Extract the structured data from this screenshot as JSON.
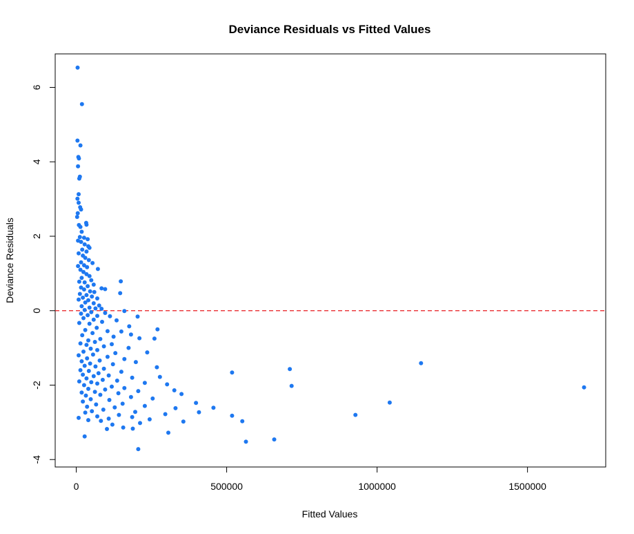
{
  "chart_data": {
    "type": "scatter",
    "title": "Deviance Residuals vs Fitted Values",
    "xlabel": "Fitted Values",
    "ylabel": "Deviance Residuals",
    "xlim": [
      -70000,
      1760000
    ],
    "ylim": [
      -4.2,
      6.9
    ],
    "x_ticks": [
      0,
      500000,
      1000000,
      1500000
    ],
    "x_tick_labels": [
      "0",
      "500000",
      "1000000",
      "1500000"
    ],
    "y_ticks": [
      -4,
      -2,
      0,
      2,
      4,
      6
    ],
    "y_tick_labels": [
      "-4",
      "-2",
      "0",
      "2",
      "4",
      "6"
    ],
    "grid": false,
    "point_color": "#1E78F0",
    "reference_line": {
      "y": 0,
      "color": "#E8191C",
      "style": "dashed"
    },
    "series": [
      {
        "points": [
          [
            4500,
            6.53
          ],
          [
            19000,
            5.55
          ],
          [
            4000,
            4.57
          ],
          [
            14000,
            4.44
          ],
          [
            7000,
            4.13
          ],
          [
            9000,
            4.09
          ],
          [
            6000,
            3.88
          ],
          [
            12000,
            3.6
          ],
          [
            10000,
            3.55
          ],
          [
            8000,
            3.13
          ],
          [
            4000,
            3.01
          ],
          [
            8000,
            2.9
          ],
          [
            13000,
            2.78
          ],
          [
            16000,
            2.72
          ],
          [
            5000,
            2.62
          ],
          [
            3000,
            2.52
          ],
          [
            33000,
            2.36
          ],
          [
            34000,
            2.31
          ],
          [
            9000,
            2.3
          ],
          [
            14000,
            2.25
          ],
          [
            18000,
            2.12
          ],
          [
            12000,
            1.98
          ],
          [
            26000,
            1.96
          ],
          [
            38000,
            1.92
          ],
          [
            6000,
            1.88
          ],
          [
            16000,
            1.85
          ],
          [
            28000,
            1.78
          ],
          [
            40000,
            1.73
          ],
          [
            44000,
            1.69
          ],
          [
            20000,
            1.64
          ],
          [
            34000,
            1.59
          ],
          [
            8000,
            1.54
          ],
          [
            22000,
            1.48
          ],
          [
            30000,
            1.42
          ],
          [
            42000,
            1.36
          ],
          [
            16000,
            1.3
          ],
          [
            54000,
            1.28
          ],
          [
            26000,
            1.22
          ],
          [
            6000,
            1.2
          ],
          [
            36000,
            1.17
          ],
          [
            72000,
            1.12
          ],
          [
            14000,
            1.1
          ],
          [
            24000,
            1.04
          ],
          [
            34000,
            0.98
          ],
          [
            44000,
            0.93
          ],
          [
            18000,
            0.88
          ],
          [
            50000,
            0.82
          ],
          [
            10000,
            0.78
          ],
          [
            28000,
            0.76
          ],
          [
            148000,
            0.79
          ],
          [
            58000,
            0.7
          ],
          [
            38000,
            0.66
          ],
          [
            16000,
            0.62
          ],
          [
            84000,
            0.6
          ],
          [
            96000,
            0.58
          ],
          [
            26000,
            0.57
          ],
          [
            46000,
            0.52
          ],
          [
            60000,
            0.5
          ],
          [
            146000,
            0.47
          ],
          [
            12000,
            0.45
          ],
          [
            34000,
            0.42
          ],
          [
            52000,
            0.38
          ],
          [
            22000,
            0.35
          ],
          [
            70000,
            0.33
          ],
          [
            8000,
            0.3
          ],
          [
            40000,
            0.28
          ],
          [
            30000,
            0.22
          ],
          [
            58000,
            0.2
          ],
          [
            76000,
            0.14
          ],
          [
            18000,
            0.12
          ],
          [
            44000,
            0.08
          ],
          [
            64000,
            0.06
          ],
          [
            84000,
            0.05
          ],
          [
            28000,
            0.02
          ],
          [
            160000,
            -0.01
          ],
          [
            50000,
            -0.04
          ],
          [
            96000,
            -0.06
          ],
          [
            16000,
            -0.08
          ],
          [
            38000,
            -0.12
          ],
          [
            70000,
            -0.14
          ],
          [
            112000,
            -0.15
          ],
          [
            204000,
            -0.16
          ],
          [
            24000,
            -0.2
          ],
          [
            58000,
            -0.24
          ],
          [
            134000,
            -0.26
          ],
          [
            86000,
            -0.3
          ],
          [
            10000,
            -0.33
          ],
          [
            44000,
            -0.35
          ],
          [
            176000,
            -0.42
          ],
          [
            68000,
            -0.46
          ],
          [
            270000,
            -0.5
          ],
          [
            30000,
            -0.52
          ],
          [
            104000,
            -0.55
          ],
          [
            150000,
            -0.56
          ],
          [
            54000,
            -0.6
          ],
          [
            182000,
            -0.64
          ],
          [
            20000,
            -0.66
          ],
          [
            124000,
            -0.7
          ],
          [
            210000,
            -0.74
          ],
          [
            80000,
            -0.76
          ],
          [
            40000,
            -0.8
          ],
          [
            260000,
            -0.75
          ],
          [
            62000,
            -0.84
          ],
          [
            14000,
            -0.88
          ],
          [
            118000,
            -0.9
          ],
          [
            34000,
            -0.92
          ],
          [
            92000,
            -0.96
          ],
          [
            174000,
            -1.0
          ],
          [
            48000,
            -1.02
          ],
          [
            70000,
            -1.06
          ],
          [
            24000,
            -1.1
          ],
          [
            236000,
            -1.12
          ],
          [
            130000,
            -1.14
          ],
          [
            56000,
            -1.18
          ],
          [
            8000,
            -1.2
          ],
          [
            104000,
            -1.24
          ],
          [
            36000,
            -1.28
          ],
          [
            160000,
            -1.3
          ],
          [
            78000,
            -1.34
          ],
          [
            18000,
            -1.36
          ],
          [
            198000,
            -1.38
          ],
          [
            46000,
            -1.42
          ],
          [
            122000,
            -1.44
          ],
          [
            28000,
            -1.48
          ],
          [
            64000,
            -1.5
          ],
          [
            268000,
            -1.52
          ],
          [
            710000,
            -1.57
          ],
          [
            92000,
            -1.56
          ],
          [
            14000,
            -1.6
          ],
          [
            42000,
            -1.62
          ],
          [
            150000,
            -1.64
          ],
          [
            518000,
            -1.66
          ],
          [
            74000,
            -1.68
          ],
          [
            1146000,
            -1.41
          ],
          [
            22000,
            -1.72
          ],
          [
            108000,
            -1.74
          ],
          [
            58000,
            -1.76
          ],
          [
            278000,
            -1.78
          ],
          [
            186000,
            -1.8
          ],
          [
            34000,
            -1.82
          ],
          [
            88000,
            -1.86
          ],
          [
            136000,
            -1.88
          ],
          [
            10000,
            -1.9
          ],
          [
            50000,
            -1.92
          ],
          [
            228000,
            -1.94
          ],
          [
            70000,
            -1.96
          ],
          [
            302000,
            -1.98
          ],
          [
            716000,
            -2.02
          ],
          [
            26000,
            -2.0
          ],
          [
            118000,
            -2.04
          ],
          [
            1688000,
            -2.06
          ],
          [
            160000,
            -2.08
          ],
          [
            40000,
            -2.1
          ],
          [
            96000,
            -2.12
          ],
          [
            326000,
            -2.14
          ],
          [
            206000,
            -2.16
          ],
          [
            62000,
            -2.18
          ],
          [
            18000,
            -2.2
          ],
          [
            140000,
            -2.22
          ],
          [
            350000,
            -2.24
          ],
          [
            80000,
            -2.26
          ],
          [
            32000,
            -2.28
          ],
          [
            182000,
            -2.32
          ],
          [
            254000,
            -2.36
          ],
          [
            48000,
            -2.38
          ],
          [
            110000,
            -2.4
          ],
          [
            22000,
            -2.44
          ],
          [
            1042000,
            -2.47
          ],
          [
            398000,
            -2.48
          ],
          [
            154000,
            -2.5
          ],
          [
            66000,
            -2.52
          ],
          [
            228000,
            -2.56
          ],
          [
            36000,
            -2.58
          ],
          [
            128000,
            -2.6
          ],
          [
            456000,
            -2.61
          ],
          [
            330000,
            -2.62
          ],
          [
            90000,
            -2.66
          ],
          [
            52000,
            -2.7
          ],
          [
            196000,
            -2.72
          ],
          [
            408000,
            -2.73
          ],
          [
            30000,
            -2.74
          ],
          [
            296000,
            -2.78
          ],
          [
            142000,
            -2.8
          ],
          [
            928000,
            -2.8
          ],
          [
            518000,
            -2.82
          ],
          [
            70000,
            -2.84
          ],
          [
            8000,
            -2.88
          ],
          [
            186000,
            -2.86
          ],
          [
            108000,
            -2.9
          ],
          [
            244000,
            -2.92
          ],
          [
            552000,
            -2.97
          ],
          [
            40000,
            -2.94
          ],
          [
            356000,
            -2.98
          ],
          [
            82000,
            -2.96
          ],
          [
            212000,
            -3.02
          ],
          [
            120000,
            -3.06
          ],
          [
            156000,
            -3.14
          ],
          [
            188000,
            -3.17
          ],
          [
            102000,
            -3.18
          ],
          [
            306000,
            -3.28
          ],
          [
            28000,
            -3.38
          ],
          [
            658000,
            -3.46
          ],
          [
            564000,
            -3.52
          ],
          [
            206000,
            -3.72
          ]
        ]
      }
    ]
  }
}
